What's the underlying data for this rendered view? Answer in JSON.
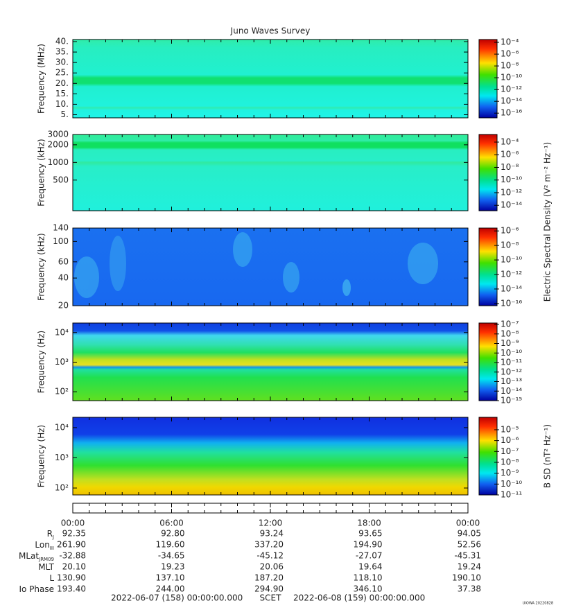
{
  "title": "Juno Waves Survey",
  "chart_data": [
    {
      "type": "spectrogram",
      "ylabel": "Frequency (MHz)",
      "log": false,
      "ylim": [
        3.5,
        41
      ],
      "yticks": [
        {
          "value": 5,
          "label": "5."
        },
        {
          "value": 10,
          "label": "10."
        },
        {
          "value": 15,
          "label": "15."
        },
        {
          "value": 20,
          "label": "20."
        },
        {
          "value": 25,
          "label": "25."
        },
        {
          "value": 30,
          "label": "30."
        },
        {
          "value": 35,
          "label": "35."
        },
        {
          "value": 40,
          "label": "40."
        }
      ],
      "colorbar": {
        "lim": [
          1.6e-17,
          0.0003
        ],
        "ticks": [
          {
            "value": 0.0001,
            "label": "10⁻⁴"
          },
          {
            "value": 1e-06,
            "label": "10⁻⁶"
          },
          {
            "value": 1e-08,
            "label": "10⁻⁸"
          },
          {
            "value": 1e-10,
            "label": "10⁻¹⁰"
          },
          {
            "value": 1e-12,
            "label": "10⁻¹²"
          },
          {
            "value": 1e-14,
            "label": "10⁻¹⁴"
          },
          {
            "value": 1e-16,
            "label": "10⁻¹⁶"
          }
        ]
      }
    },
    {
      "type": "spectrogram",
      "ylabel": "Frequency (kHz)",
      "log": true,
      "ylim": [
        150,
        3000
      ],
      "yticks": [
        500,
        1000,
        2000,
        3000
      ],
      "colorbar": {
        "lim": [
          1.4e-15,
          0.0016
        ],
        "ticks": [
          {
            "value": 0.0001,
            "label": "10⁻⁴"
          },
          {
            "value": 1e-06,
            "label": "10⁻⁶"
          },
          {
            "value": 1e-08,
            "label": "10⁻⁸"
          },
          {
            "value": 1e-10,
            "label": "10⁻¹⁰"
          },
          {
            "value": 1e-12,
            "label": "10⁻¹²"
          },
          {
            "value": 1e-14,
            "label": "10⁻¹⁴"
          }
        ]
      }
    },
    {
      "type": "spectrogram",
      "ylabel": "Frequency (kHz)",
      "log": true,
      "ylim": [
        20,
        140
      ],
      "yticks": [
        20,
        40,
        60,
        100,
        140
      ],
      "colorbar": {
        "lim": [
          5e-17,
          2.5e-06
        ],
        "ticks": [
          {
            "value": 1e-06,
            "label": "10⁻⁶"
          },
          {
            "value": 1e-08,
            "label": "10⁻⁸"
          },
          {
            "value": 1e-10,
            "label": "10⁻¹⁰"
          },
          {
            "value": 1e-12,
            "label": "10⁻¹²"
          },
          {
            "value": 1e-14,
            "label": "10⁻¹⁴"
          },
          {
            "value": 1e-16,
            "label": "10⁻¹⁶"
          }
        ]
      }
    },
    {
      "type": "spectrogram",
      "ylabel": "Frequency (Hz)",
      "log": true,
      "ylim": [
        50,
        21000
      ],
      "yticks": [
        {
          "value": 100,
          "label": "10²"
        },
        {
          "value": 1000,
          "label": "10³"
        },
        {
          "value": 10000,
          "label": "10⁴"
        }
      ],
      "colorbar": {
        "lim": [
          1e-15,
          1.4e-07
        ],
        "ticks": [
          {
            "value": 1e-07,
            "label": "10⁻⁷"
          },
          {
            "value": 1e-08,
            "label": "10⁻⁸"
          },
          {
            "value": 1e-09,
            "label": "10⁻⁹"
          },
          {
            "value": 1e-10,
            "label": "10⁻¹⁰"
          },
          {
            "value": 1e-11,
            "label": "10⁻¹¹"
          },
          {
            "value": 1e-12,
            "label": "10⁻¹²"
          },
          {
            "value": 1e-13,
            "label": "10⁻¹³"
          },
          {
            "value": 1e-14,
            "label": "10⁻¹⁴"
          },
          {
            "value": 1e-15,
            "label": "10⁻¹⁵"
          }
        ]
      }
    },
    {
      "type": "spectrogram",
      "ylabel": "Frequency (Hz)",
      "log": true,
      "ylim": [
        59,
        22000
      ],
      "yticks": [
        {
          "value": 100,
          "label": "10²"
        },
        {
          "value": 1000,
          "label": "10³"
        },
        {
          "value": 10000,
          "label": "10⁴"
        }
      ],
      "colorbar": {
        "lim": [
          1e-11,
          0.00014
        ],
        "ticks": [
          {
            "value": 1e-05,
            "label": "10⁻⁵"
          },
          {
            "value": 1e-06,
            "label": "10⁻⁶"
          },
          {
            "value": 1e-07,
            "label": "10⁻⁷"
          },
          {
            "value": 1e-08,
            "label": "10⁻⁸"
          },
          {
            "value": 1e-09,
            "label": "10⁻⁹"
          },
          {
            "value": 1e-10,
            "label": "10⁻¹⁰"
          },
          {
            "value": 1e-11,
            "label": "10⁻¹¹"
          }
        ]
      }
    }
  ],
  "colorbar_labels": [
    "Electric Spectral Density (V² m⁻² Hz⁻¹)",
    "B SD (nT² Hz⁻¹)"
  ],
  "time_labels": [
    "00:00",
    "06:00",
    "12:00",
    "18:00",
    "00:00"
  ],
  "ephemeris": [
    {
      "label": "R",
      "sub": "J",
      "values": [
        "92.35",
        "92.80",
        "93.24",
        "93.65",
        "94.05"
      ]
    },
    {
      "label": "Lon",
      "sub": "III",
      "values": [
        "261.90",
        "119.60",
        "337.20",
        "194.90",
        "52.56"
      ]
    },
    {
      "label": "MLat",
      "sub": "JRM09",
      "values": [
        "-32.88",
        "-34.65",
        "-45.12",
        "-27.07",
        "-45.31"
      ]
    },
    {
      "label": "MLT",
      "values": [
        "20.10",
        "19.23",
        "20.06",
        "19.64",
        "19.24"
      ]
    },
    {
      "label": "L",
      "values": [
        "130.90",
        "137.10",
        "187.20",
        "118.10",
        "190.10"
      ]
    },
    {
      "label": "Io Phase",
      "values": [
        "193.40",
        "244.00",
        "294.90",
        "346.10",
        "37.38"
      ]
    }
  ],
  "footer": {
    "start": "2022-06-07 (158) 00:00:00.000",
    "scet": "SCET",
    "end": "2022-06-08 (159) 00:00:00.000"
  },
  "stamp": "UIOWA 20220828"
}
